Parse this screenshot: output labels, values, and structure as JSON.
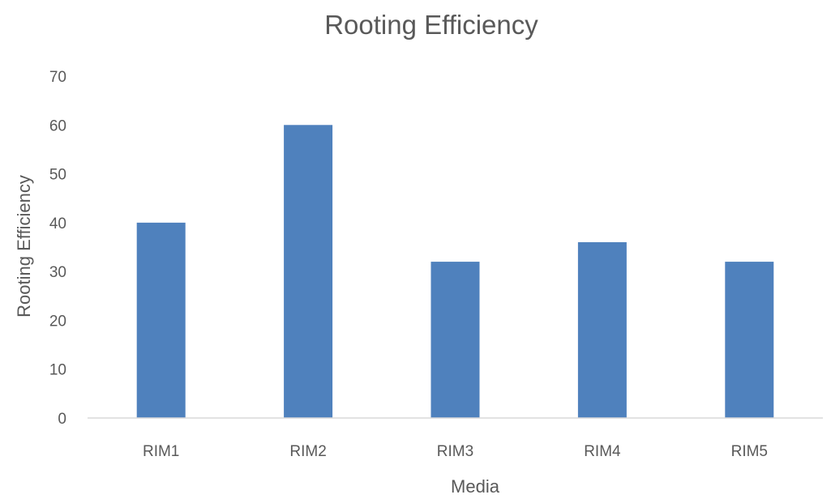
{
  "chart_data": {
    "type": "bar",
    "title": "Rooting Efficiency",
    "xlabel": "Media",
    "ylabel": "Rooting Efficiency",
    "categories": [
      "RIM1",
      "RIM2",
      "RIM3",
      "RIM4",
      "RIM5"
    ],
    "series": [
      {
        "values": [
          40,
          60,
          32,
          36,
          32
        ]
      }
    ],
    "ylim": [
      0,
      70
    ],
    "yticks": [
      0,
      10,
      20,
      30,
      40,
      50,
      60,
      70
    ],
    "grid": false,
    "legend": "none",
    "bar_color": "#4f81bd",
    "text_color": "#595959",
    "axis_line_color": "#d9d9d9"
  }
}
